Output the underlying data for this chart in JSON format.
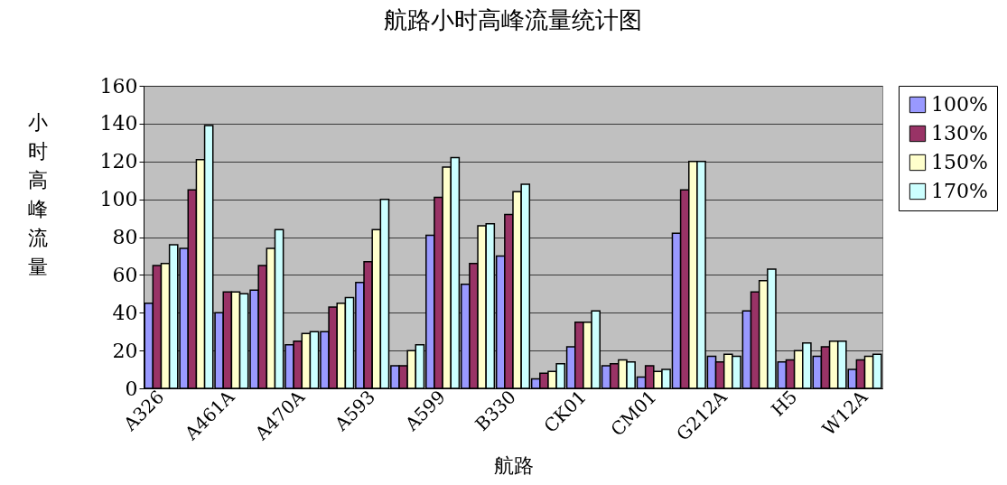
{
  "chart_data": {
    "type": "bar",
    "title": "航路小时高峰流量统计图",
    "xlabel": "航路",
    "ylabel": "小时高峰流量",
    "categories": [
      "A326",
      null,
      "A461A",
      null,
      "A470A",
      null,
      "A593",
      null,
      "A599",
      null,
      "B330",
      null,
      "CK01",
      null,
      "CM01",
      null,
      "G212A",
      null,
      "H5",
      null,
      "W12A"
    ],
    "series": [
      {
        "name": "100%",
        "color": "#9999ff",
        "values": [
          45,
          74,
          40,
          52,
          23,
          30,
          56,
          12,
          81,
          55,
          70,
          5,
          22,
          12,
          6,
          82,
          17,
          41,
          14,
          17,
          10
        ]
      },
      {
        "name": "130%",
        "color": "#993366",
        "values": [
          65,
          105,
          51,
          65,
          25,
          43,
          67,
          12,
          101,
          66,
          92,
          8,
          35,
          13,
          12,
          105,
          14,
          51,
          15,
          22,
          15
        ]
      },
      {
        "name": "150%",
        "color": "#ffffcc",
        "values": [
          66,
          121,
          51,
          74,
          29,
          45,
          84,
          20,
          117,
          86,
          104,
          9,
          35,
          15,
          9,
          120,
          18,
          57,
          20,
          25,
          17
        ]
      },
      {
        "name": "170%",
        "color": "#ccffff",
        "values": [
          76,
          139,
          50,
          84,
          30,
          48,
          100,
          23,
          122,
          87,
          108,
          13,
          41,
          14,
          10,
          120,
          17,
          63,
          24,
          25,
          18
        ]
      }
    ],
    "ylim": [
      0,
      160
    ],
    "yticks": [
      0,
      20,
      40,
      60,
      80,
      100,
      120,
      140,
      160
    ],
    "grid": "y",
    "legend": "right"
  }
}
